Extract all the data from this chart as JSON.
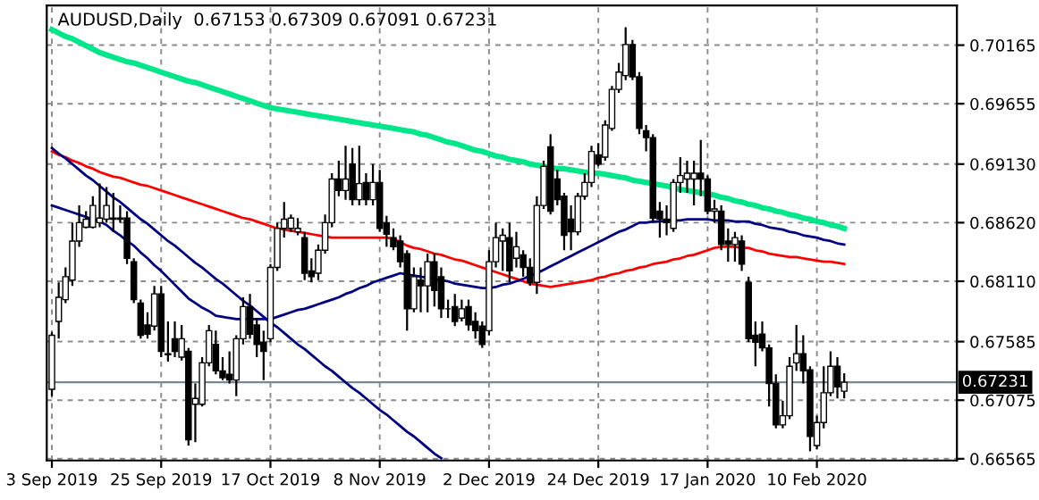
{
  "chart_data": {
    "type": "candlestick",
    "title": "AUDUSD,Daily  0.67153 0.67309 0.67091 0.67231",
    "categories": [
      "3 Sep 2019",
      null,
      null,
      null,
      null,
      null,
      null,
      null,
      null,
      null,
      null,
      null,
      null,
      null,
      null,
      null,
      "25 Sep 2019",
      null,
      null,
      null,
      null,
      null,
      null,
      null,
      null,
      null,
      null,
      null,
      null,
      null,
      null,
      null,
      "17 Oct 2019",
      null,
      null,
      null,
      null,
      null,
      null,
      null,
      null,
      null,
      null,
      null,
      null,
      null,
      null,
      null,
      "8 Nov 2019",
      null,
      null,
      null,
      null,
      null,
      null,
      null,
      null,
      null,
      null,
      null,
      null,
      null,
      null,
      null,
      "2 Dec 2019",
      null,
      null,
      null,
      null,
      null,
      null,
      null,
      null,
      null,
      null,
      null,
      null,
      null,
      null,
      null,
      "24 Dec 2019",
      null,
      null,
      null,
      null,
      null,
      null,
      null,
      null,
      null,
      null,
      null,
      null,
      null,
      null,
      null,
      "17 Jan 2020",
      null,
      null,
      null,
      null,
      null,
      null,
      null,
      null,
      null,
      null,
      null,
      null,
      null,
      null,
      null,
      "10 Feb 2020",
      null,
      null,
      null,
      null
    ],
    "ohlc": [
      [
        0.6717,
        0.6767,
        0.6711,
        0.6764
      ],
      [
        0.6776,
        0.681,
        0.6761,
        0.6797
      ],
      [
        0.6795,
        0.6823,
        0.6792,
        0.6815
      ],
      [
        0.6812,
        0.6862,
        0.6807,
        0.6846
      ],
      [
        0.6846,
        0.6877,
        0.6841,
        0.6862
      ],
      [
        0.6858,
        0.6872,
        0.6857,
        0.6865
      ],
      [
        0.6858,
        0.6885,
        0.6857,
        0.6877
      ],
      [
        0.6862,
        0.6896,
        0.6858,
        0.6866
      ],
      [
        0.6865,
        0.6893,
        0.6862,
        0.6877
      ],
      [
        0.6865,
        0.6888,
        0.6854,
        0.6866
      ],
      [
        0.6866,
        0.6877,
        0.6862,
        0.6865
      ],
      [
        0.6866,
        0.6872,
        0.6826,
        0.6831
      ],
      [
        0.6828,
        0.6831,
        0.6792,
        0.6795
      ],
      [
        0.6792,
        0.6795,
        0.6761,
        0.6764
      ],
      [
        0.6773,
        0.6784,
        0.6761,
        0.6765
      ],
      [
        0.6772,
        0.6807,
        0.6768,
        0.68
      ],
      [
        0.68,
        0.6807,
        0.6745,
        0.675
      ],
      [
        0.6748,
        0.6776,
        0.6741,
        0.6747
      ],
      [
        0.6761,
        0.6776,
        0.6745,
        0.675
      ],
      [
        0.6745,
        0.6773,
        0.6742,
        0.6761
      ],
      [
        0.675,
        0.6753,
        0.6668,
        0.6673
      ],
      [
        0.6704,
        0.6722,
        0.6671,
        0.6709
      ],
      [
        0.6704,
        0.6745,
        0.6702,
        0.674
      ],
      [
        0.674,
        0.6773,
        0.6737,
        0.6768
      ],
      [
        0.6756,
        0.6768,
        0.673,
        0.6733
      ],
      [
        0.6733,
        0.6745,
        0.6725,
        0.6727
      ],
      [
        0.673,
        0.675,
        0.6722,
        0.6725
      ],
      [
        0.6725,
        0.6764,
        0.6711,
        0.6761
      ],
      [
        0.6761,
        0.6797,
        0.6756,
        0.6789
      ],
      [
        0.6789,
        0.68,
        0.6761,
        0.6765
      ],
      [
        0.6773,
        0.6779,
        0.6745,
        0.6756
      ],
      [
        0.6758,
        0.6768,
        0.6725,
        0.675
      ],
      [
        0.6761,
        0.6826,
        0.6758,
        0.6823
      ],
      [
        0.6823,
        0.6862,
        0.682,
        0.6857
      ],
      [
        0.6857,
        0.688,
        0.6849,
        0.6865
      ],
      [
        0.6857,
        0.6869,
        0.6854,
        0.6866
      ],
      [
        0.6854,
        0.6866,
        0.6851,
        0.6857
      ],
      [
        0.6849,
        0.6854,
        0.6812,
        0.6818
      ],
      [
        0.682,
        0.6831,
        0.681,
        0.6815
      ],
      [
        0.6818,
        0.6843,
        0.6812,
        0.6838
      ],
      [
        0.6838,
        0.6869,
        0.6835,
        0.6862
      ],
      [
        0.6862,
        0.6905,
        0.6858,
        0.69
      ],
      [
        0.69,
        0.6916,
        0.6885,
        0.689
      ],
      [
        0.689,
        0.6929,
        0.6882,
        0.69
      ],
      [
        0.6913,
        0.6927,
        0.6877,
        0.6882
      ],
      [
        0.6882,
        0.6929,
        0.6877,
        0.6896
      ],
      [
        0.6897,
        0.6905,
        0.6877,
        0.6882
      ],
      [
        0.6882,
        0.6913,
        0.6877,
        0.6897
      ],
      [
        0.6897,
        0.6908,
        0.6854,
        0.6857
      ],
      [
        0.6862,
        0.6868,
        0.6841,
        0.6852
      ],
      [
        0.6849,
        0.6857,
        0.6838,
        0.6841
      ],
      [
        0.6846,
        0.6851,
        0.6823,
        0.6828
      ],
      [
        0.6835,
        0.6838,
        0.6768,
        0.6787
      ],
      [
        0.6787,
        0.6823,
        0.6784,
        0.6815
      ],
      [
        0.6812,
        0.6823,
        0.6784,
        0.6807
      ],
      [
        0.6807,
        0.6835,
        0.6784,
        0.6828
      ],
      [
        0.6828,
        0.6835,
        0.6789,
        0.6803
      ],
      [
        0.6815,
        0.6823,
        0.6779,
        0.6787
      ],
      [
        0.6787,
        0.6795,
        0.6779,
        0.6787
      ],
      [
        0.6789,
        0.68,
        0.6772,
        0.6776
      ],
      [
        0.6779,
        0.6795,
        0.6776,
        0.6787
      ],
      [
        0.6789,
        0.6795,
        0.6768,
        0.6773
      ],
      [
        0.6776,
        0.6784,
        0.6761,
        0.6768
      ],
      [
        0.6772,
        0.6776,
        0.6753,
        0.6756
      ],
      [
        0.6768,
        0.6838,
        0.6764,
        0.6828
      ],
      [
        0.6828,
        0.6862,
        0.6823,
        0.6849
      ],
      [
        0.6846,
        0.6857,
        0.682,
        0.6851
      ],
      [
        0.6849,
        0.6862,
        0.681,
        0.682
      ],
      [
        0.6831,
        0.6854,
        0.6823,
        0.6841
      ],
      [
        0.6834,
        0.6838,
        0.6815,
        0.6823
      ],
      [
        0.6823,
        0.6831,
        0.6807,
        0.681
      ],
      [
        0.681,
        0.6885,
        0.68,
        0.6877
      ],
      [
        0.6877,
        0.6916,
        0.6874,
        0.6911
      ],
      [
        0.6928,
        0.6939,
        0.6869,
        0.6872
      ],
      [
        0.69,
        0.6908,
        0.6877,
        0.6882
      ],
      [
        0.6885,
        0.6888,
        0.6838,
        0.6851
      ],
      [
        0.6865,
        0.6877,
        0.6838,
        0.6854
      ],
      [
        0.6854,
        0.6888,
        0.6851,
        0.6885
      ],
      [
        0.6885,
        0.6905,
        0.6882,
        0.6897
      ],
      [
        0.6897,
        0.6929,
        0.6893,
        0.6924
      ],
      [
        0.6921,
        0.6931,
        0.6911,
        0.6913
      ],
      [
        0.6919,
        0.6951,
        0.6916,
        0.6947
      ],
      [
        0.6944,
        0.6981,
        0.6942,
        0.6978
      ],
      [
        0.6978,
        0.7001,
        0.6975,
        0.6993
      ],
      [
        0.699,
        0.7032,
        0.6986,
        0.7017
      ],
      [
        0.7017,
        0.7021,
        0.6986,
        0.6989
      ],
      [
        0.6989,
        0.6993,
        0.6939,
        0.6944
      ],
      [
        0.6942,
        0.6947,
        0.6924,
        0.6936
      ],
      [
        0.6936,
        0.6939,
        0.6862,
        0.6866
      ],
      [
        0.6872,
        0.688,
        0.6849,
        0.6865
      ],
      [
        0.6865,
        0.6877,
        0.6851,
        0.6862
      ],
      [
        0.6857,
        0.69,
        0.6854,
        0.6897
      ],
      [
        0.6897,
        0.6919,
        0.6888,
        0.6903
      ],
      [
        0.69,
        0.6916,
        0.6888,
        0.6905
      ],
      [
        0.69,
        0.6916,
        0.6877,
        0.6905
      ],
      [
        0.6905,
        0.6934,
        0.6885,
        0.69
      ],
      [
        0.69,
        0.6903,
        0.6869,
        0.6872
      ],
      [
        0.6872,
        0.6882,
        0.6862,
        0.6874
      ],
      [
        0.6872,
        0.6877,
        0.6838,
        0.6843
      ],
      [
        0.6846,
        0.6857,
        0.6828,
        0.6843
      ],
      [
        0.6843,
        0.6854,
        0.6828,
        0.6849
      ],
      [
        0.6846,
        0.6851,
        0.682,
        0.6826
      ],
      [
        0.681,
        0.6815,
        0.6758,
        0.6761
      ],
      [
        0.6764,
        0.6776,
        0.6737,
        0.6758
      ],
      [
        0.6765,
        0.6776,
        0.675,
        0.6753
      ],
      [
        0.6753,
        0.6756,
        0.6702,
        0.6722
      ],
      [
        0.6722,
        0.673,
        0.6683,
        0.6686
      ],
      [
        0.6686,
        0.6707,
        0.6683,
        0.6694
      ],
      [
        0.6694,
        0.6745,
        0.6691,
        0.6737
      ],
      [
        0.674,
        0.6773,
        0.6733,
        0.6748
      ],
      [
        0.6748,
        0.6764,
        0.6722,
        0.6733
      ],
      [
        0.6734,
        0.6737,
        0.6663,
        0.6676
      ],
      [
        0.6668,
        0.6694,
        0.6665,
        0.6688
      ],
      [
        0.6688,
        0.6737,
        0.6683,
        0.6714
      ],
      [
        0.6714,
        0.675,
        0.6711,
        0.6737
      ],
      [
        0.6737,
        0.6745,
        0.6709,
        0.6719
      ],
      [
        0.67153,
        0.67309,
        0.67091,
        0.67231
      ]
    ],
    "series": [
      {
        "type": "line",
        "color": "#00e68a",
        "values": [
          0.703,
          0.7027,
          0.7024,
          0.7022,
          0.7019,
          0.7016,
          0.7013,
          0.701,
          0.7008,
          0.7006,
          0.7004,
          0.7002,
          0.7001,
          0.6999,
          0.6997,
          0.6995,
          0.6993,
          0.6991,
          0.6989,
          0.6987,
          0.6985,
          0.6984,
          0.6982,
          0.698,
          0.6978,
          0.6976,
          0.6974,
          0.6972,
          0.697,
          0.6968,
          0.6966,
          0.6964,
          0.6962,
          0.6961,
          0.696,
          0.6959,
          0.6958,
          0.6957,
          0.6956,
          0.6955,
          0.6954,
          0.6953,
          0.6952,
          0.6951,
          0.695,
          0.6949,
          0.6948,
          0.6947,
          0.6946,
          0.6945,
          0.6944,
          0.6943,
          0.6942,
          0.6941,
          0.6939,
          0.6938,
          0.6936,
          0.6934,
          0.6932,
          0.6931,
          0.6929,
          0.6927,
          0.6925,
          0.6924,
          0.6922,
          0.692,
          0.6919,
          0.6917,
          0.6916,
          0.6915,
          0.6913,
          0.6912,
          0.6911,
          0.691,
          0.6909,
          0.6909,
          0.6908,
          0.6907,
          0.6906,
          0.6905,
          0.6905,
          0.6904,
          0.6903,
          0.6902,
          0.6901,
          0.6899,
          0.6898,
          0.6897,
          0.6896,
          0.6895,
          0.6894,
          0.6892,
          0.6891,
          0.689,
          0.6889,
          0.6888,
          0.6887,
          0.6886,
          0.6884,
          0.6883,
          0.6881,
          0.688,
          0.6878,
          0.6877,
          0.6875,
          0.6874,
          0.6872,
          0.6871,
          0.6869,
          0.6868,
          0.6866,
          0.6865,
          0.6863,
          0.6862,
          0.686,
          0.6859,
          0.6857
        ]
      },
      {
        "type": "line",
        "color": "#ff0000",
        "values": [
          0.6924,
          0.6921,
          0.6919,
          0.6916,
          0.6914,
          0.6911,
          0.6909,
          0.6906,
          0.6904,
          0.6902,
          0.6901,
          0.6899,
          0.6897,
          0.6895,
          0.6894,
          0.6892,
          0.689,
          0.6888,
          0.6886,
          0.6884,
          0.6882,
          0.688,
          0.6878,
          0.6876,
          0.6874,
          0.6872,
          0.687,
          0.6868,
          0.6866,
          0.6865,
          0.6863,
          0.6861,
          0.6859,
          0.6857,
          0.6856,
          0.6855,
          0.6854,
          0.6853,
          0.6852,
          0.6851,
          0.685,
          0.6849,
          0.6849,
          0.6849,
          0.6849,
          0.6849,
          0.6849,
          0.6849,
          0.6849,
          0.6849,
          0.6848,
          0.6845,
          0.6842,
          0.684,
          0.6839,
          0.6837,
          0.6835,
          0.6834,
          0.6832,
          0.683,
          0.6829,
          0.6827,
          0.6825,
          0.6823,
          0.6821,
          0.6819,
          0.6817,
          0.6815,
          0.6813,
          0.6811,
          0.6809,
          0.6808,
          0.6807,
          0.6806,
          0.6807,
          0.6808,
          0.6809,
          0.681,
          0.6811,
          0.6812,
          0.6814,
          0.6815,
          0.6817,
          0.6818,
          0.682,
          0.6821,
          0.6823,
          0.6824,
          0.6826,
          0.6827,
          0.6828,
          0.683,
          0.6831,
          0.6833,
          0.6834,
          0.6836,
          0.6838,
          0.684,
          0.6841,
          0.6841,
          0.6841,
          0.684,
          0.684,
          0.6838,
          0.6837,
          0.6835,
          0.6834,
          0.6833,
          0.6832,
          0.6832,
          0.6831,
          0.683,
          0.6829,
          0.6828,
          0.6828,
          0.6827,
          0.6826
        ]
      },
      {
        "type": "line",
        "color": "#000080",
        "values": [
          0.6877,
          0.6875,
          0.6873,
          0.6871,
          0.6869,
          0.6867,
          0.6865,
          0.6863,
          0.686,
          0.6855,
          0.6851,
          0.6846,
          0.6842,
          0.6836,
          0.6831,
          0.6825,
          0.682,
          0.6814,
          0.6808,
          0.6802,
          0.6796,
          0.6792,
          0.6788,
          0.6785,
          0.6781,
          0.678,
          0.6779,
          0.6778,
          0.6778,
          0.6778,
          0.6778,
          0.6778,
          0.6778,
          0.678,
          0.6782,
          0.6784,
          0.6786,
          0.6787,
          0.6789,
          0.6791,
          0.6793,
          0.6795,
          0.6797,
          0.68,
          0.6802,
          0.6805,
          0.6807,
          0.681,
          0.6812,
          0.6814,
          0.6816,
          0.6818,
          0.6817,
          0.6816,
          0.6815,
          0.6814,
          0.6813,
          0.6812,
          0.6811,
          0.6809,
          0.6808,
          0.6807,
          0.6806,
          0.6805,
          0.6805,
          0.6806,
          0.6808,
          0.6809,
          0.6811,
          0.6813,
          0.6816,
          0.6818,
          0.6821,
          0.6824,
          0.6827,
          0.683,
          0.6833,
          0.6836,
          0.6839,
          0.6842,
          0.6845,
          0.6848,
          0.6851,
          0.6854,
          0.6856,
          0.6859,
          0.6862,
          0.6862,
          0.6863,
          0.6863,
          0.6864,
          0.6864,
          0.6864,
          0.6865,
          0.6865,
          0.6865,
          0.6865,
          0.6864,
          0.6864,
          0.6864,
          0.6863,
          0.6863,
          0.6863,
          0.6861,
          0.686,
          0.6858,
          0.6857,
          0.6856,
          0.6854,
          0.6853,
          0.6851,
          0.685,
          0.6849,
          0.6847,
          0.6846,
          0.6844,
          0.6843
        ]
      },
      {
        "type": "line",
        "color": "#000080",
        "values": [
          0.6927,
          0.6922,
          0.6918,
          0.6913,
          0.6908,
          0.6903,
          0.6899,
          0.6894,
          0.6889,
          0.6884,
          0.688,
          0.6875,
          0.687,
          0.6865,
          0.6861,
          0.6856,
          0.6851,
          0.6846,
          0.6842,
          0.6837,
          0.6832,
          0.6827,
          0.6823,
          0.6818,
          0.6813,
          0.6809,
          0.6804,
          0.6799,
          0.6794,
          0.679,
          0.6785,
          0.678,
          0.6775,
          0.6771,
          0.6766,
          0.6761,
          0.6756,
          0.6752,
          0.6747,
          0.6742,
          0.6737,
          0.6733,
          0.6728,
          0.6723,
          0.6718,
          0.6714,
          0.6709,
          0.6704,
          0.6699,
          0.6695,
          0.669,
          0.6685,
          0.668,
          0.6676,
          0.6671,
          0.6666,
          0.6661,
          0.6657,
          null,
          null,
          null,
          null,
          null,
          null,
          null,
          null,
          null,
          null,
          null,
          null,
          null,
          null,
          null,
          null,
          null,
          null,
          null,
          null,
          null,
          null,
          null,
          null,
          null,
          null,
          null,
          null,
          null,
          null,
          null,
          null,
          null,
          null,
          null,
          null,
          null,
          null,
          null,
          null,
          null,
          null,
          null,
          null,
          null,
          null,
          null,
          null,
          null,
          null,
          null,
          null,
          null,
          null,
          null,
          null,
          null,
          null,
          null
        ]
      }
    ],
    "ylim": [
      0.6655,
      0.7051
    ],
    "yticks": [
      0.70165,
      0.69655,
      {
        "value": 0.6913,
        "label": "0.69130"
      },
      {
        "value": 0.6862,
        "label": "0.68620"
      },
      {
        "value": 0.6811,
        "label": "0.68110"
      },
      0.67585,
      0.67075,
      0.66565
    ],
    "ref_lines": [
      {
        "axis": "y",
        "value": 0.67231,
        "label": "0.67231",
        "color": "#778899"
      }
    ],
    "grid": true
  }
}
